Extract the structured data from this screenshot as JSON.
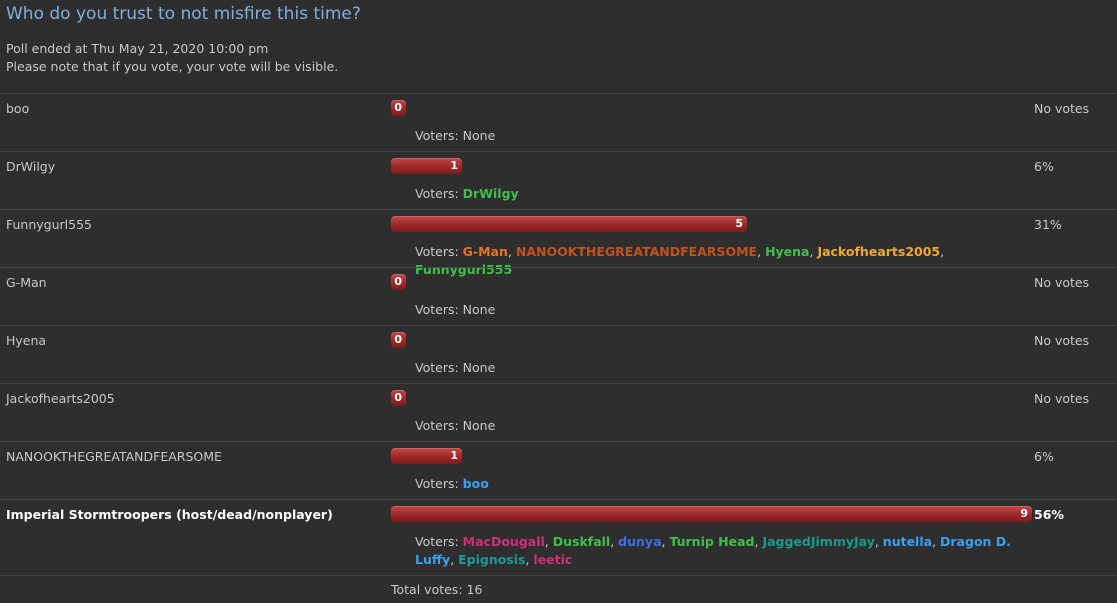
{
  "title": "Who do you trust to not misfire this time?",
  "info": {
    "ended": "Poll ended at Thu May 21, 2020 10:00 pm",
    "note": "Please note that if you vote, your vote will be visible."
  },
  "voters_label": "Voters:",
  "options": [
    {
      "label": "boo",
      "votes": 0,
      "percent_text": "No votes",
      "voters": [],
      "none_text": "None"
    },
    {
      "label": "DrWilgy",
      "votes": 1,
      "percent_text": "6%",
      "voters": [
        {
          "name": "DrWilgy",
          "color": "#3fc04a"
        }
      ]
    },
    {
      "label": "Funnygurl555",
      "votes": 5,
      "percent_text": "31%",
      "voters": [
        {
          "name": "G-Man",
          "color": "#e8732a"
        },
        {
          "name": "NANOOKTHEGREATANDFEARSOME",
          "color": "#c4521f"
        },
        {
          "name": "Hyena",
          "color": "#3fc04a"
        },
        {
          "name": "Jackofhearts2005",
          "color": "#f0a830"
        },
        {
          "name": "Funnygurl555",
          "color": "#3fc04a"
        }
      ]
    },
    {
      "label": "G-Man",
      "votes": 0,
      "percent_text": "No votes",
      "voters": [],
      "none_text": "None"
    },
    {
      "label": "Hyena",
      "votes": 0,
      "percent_text": "No votes",
      "voters": [],
      "none_text": "None"
    },
    {
      "label": "Jackofhearts2005",
      "votes": 0,
      "percent_text": "No votes",
      "voters": [],
      "none_text": "None"
    },
    {
      "label": "NANOOKTHEGREATANDFEARSOME",
      "votes": 1,
      "percent_text": "6%",
      "voters": [
        {
          "name": "boo",
          "color": "#3aa0f0"
        }
      ]
    },
    {
      "label": "Imperial Stormtroopers (host/dead/nonplayer)",
      "votes": 9,
      "percent_text": "56%",
      "bold": true,
      "voters": [
        {
          "name": "MacDougall",
          "color": "#d0307a"
        },
        {
          "name": "Duskfall",
          "color": "#3fc04a"
        },
        {
          "name": "dunya",
          "color": "#3a70e8"
        },
        {
          "name": "Turnip Head",
          "color": "#3fc04a"
        },
        {
          "name": "JaggedJimmyJay",
          "color": "#1a9a8a"
        },
        {
          "name": "nutella",
          "color": "#3aa0f0"
        },
        {
          "name": "Dragon D. Luffy",
          "color": "#3aa0f0"
        },
        {
          "name": "Epignosis",
          "color": "#1a9a9a"
        },
        {
          "name": "leetic",
          "color": "#d0307a"
        }
      ]
    }
  ],
  "total": "Total votes: 16"
}
